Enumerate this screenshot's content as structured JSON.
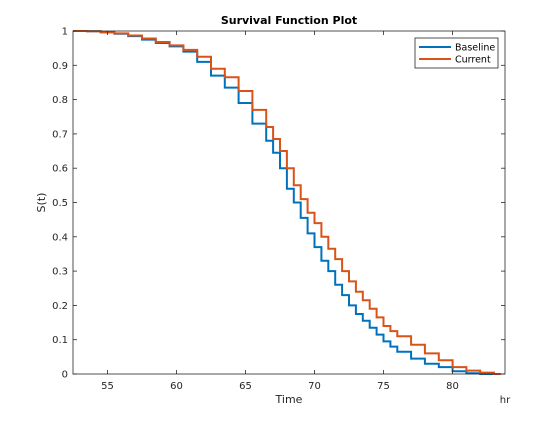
{
  "chart_data": {
    "type": "line",
    "step": true,
    "title": "Survival Function Plot",
    "xlabel": "Time",
    "ylabel": "S(t)",
    "x_unit": "hr",
    "xlim": [
      52.5,
      83.8
    ],
    "ylim": [
      0,
      1
    ],
    "xticks": [
      55,
      60,
      65,
      70,
      75,
      80
    ],
    "yticks": [
      0,
      0.1,
      0.2,
      0.3,
      0.4,
      0.5,
      0.6,
      0.7,
      0.8,
      0.9,
      1
    ],
    "grid": false,
    "legend_position": "top-right",
    "series": [
      {
        "name": "Baseline",
        "color": "#0072BD",
        "x": [
          52.5,
          53.5,
          54.5,
          55.5,
          56.5,
          57.5,
          58.5,
          59.5,
          60.5,
          61.5,
          62.5,
          63.5,
          64.5,
          65.5,
          66.5,
          67.0,
          67.5,
          68.0,
          68.5,
          69.0,
          69.5,
          70.0,
          70.5,
          71.0,
          71.5,
          72.0,
          72.5,
          73.0,
          73.5,
          74.0,
          74.5,
          75.0,
          75.5,
          76.0,
          77.0,
          78.0,
          79.0,
          80.0,
          81.0,
          82.0,
          83.0
        ],
        "y": [
          1.0,
          0.999,
          0.996,
          0.992,
          0.985,
          0.975,
          0.965,
          0.955,
          0.94,
          0.91,
          0.87,
          0.835,
          0.79,
          0.73,
          0.68,
          0.645,
          0.6,
          0.54,
          0.5,
          0.455,
          0.41,
          0.37,
          0.33,
          0.3,
          0.26,
          0.23,
          0.2,
          0.175,
          0.155,
          0.135,
          0.115,
          0.095,
          0.08,
          0.065,
          0.045,
          0.03,
          0.02,
          0.008,
          0.002,
          0.0,
          0.0
        ]
      },
      {
        "name": "Current",
        "color": "#D95319",
        "x": [
          52.5,
          53.5,
          54.5,
          55.5,
          56.5,
          57.5,
          58.5,
          59.5,
          60.5,
          61.5,
          62.5,
          63.5,
          64.5,
          65.5,
          66.5,
          67.0,
          67.5,
          68.0,
          68.5,
          69.0,
          69.5,
          70.0,
          70.5,
          71.0,
          71.5,
          72.0,
          72.5,
          73.0,
          73.5,
          74.0,
          74.5,
          75.0,
          75.5,
          76.0,
          77.0,
          78.0,
          79.0,
          80.0,
          81.0,
          82.0,
          83.0,
          83.5
        ],
        "y": [
          1.0,
          0.999,
          0.997,
          0.993,
          0.987,
          0.978,
          0.968,
          0.958,
          0.945,
          0.925,
          0.89,
          0.865,
          0.825,
          0.77,
          0.72,
          0.685,
          0.65,
          0.6,
          0.55,
          0.51,
          0.47,
          0.44,
          0.4,
          0.365,
          0.335,
          0.3,
          0.27,
          0.24,
          0.215,
          0.19,
          0.165,
          0.14,
          0.125,
          0.11,
          0.085,
          0.06,
          0.04,
          0.02,
          0.01,
          0.004,
          0.0,
          0.0
        ]
      }
    ]
  }
}
